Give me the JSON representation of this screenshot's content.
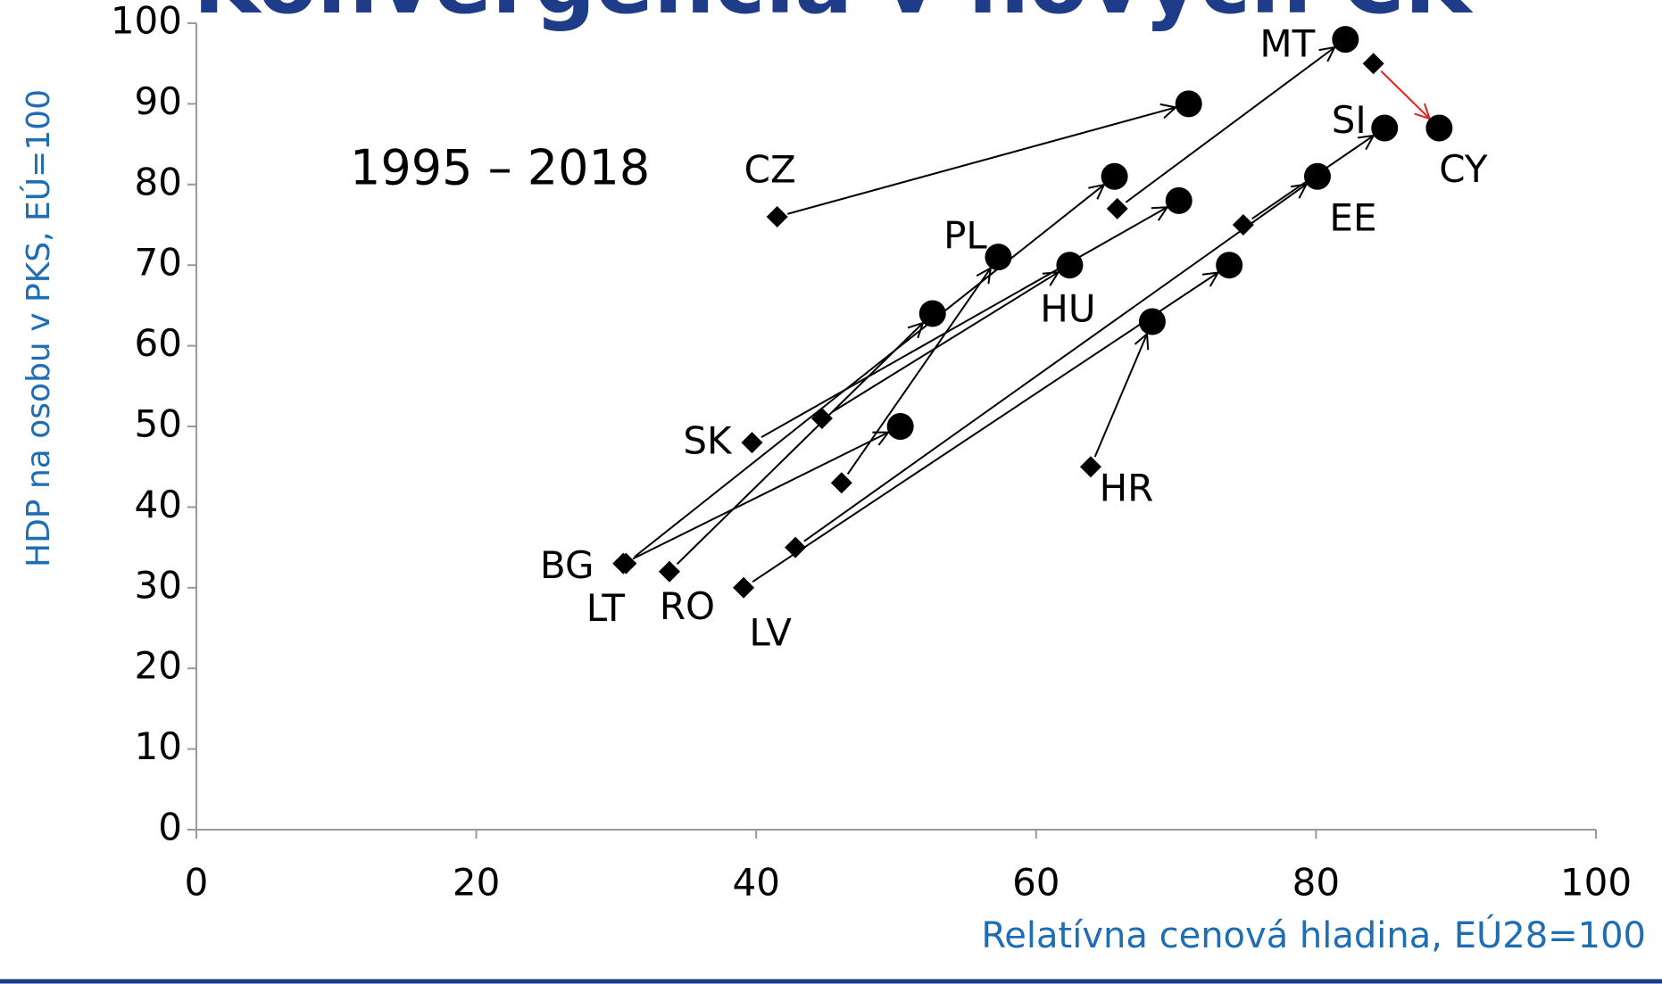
{
  "chart_data": {
    "type": "scatter",
    "title": "Konvergencia v nových ČK",
    "subtitle": "1995 – 2018",
    "xlabel": "Relatívna cenová hladina, EÚ28=100",
    "ylabel": "HDP na osobu v PKS, EÚ=100",
    "xlim": [
      0,
      100
    ],
    "ylim": [
      0,
      100
    ],
    "xticks": [
      0,
      20,
      40,
      60,
      80,
      100
    ],
    "yticks": [
      0,
      10,
      20,
      30,
      40,
      50,
      60,
      70,
      80,
      90,
      100
    ],
    "grid": false,
    "countries": [
      "CZ",
      "MT",
      "CY",
      "SI",
      "PL",
      "HU",
      "SK",
      "BG",
      "LT",
      "RO",
      "LV",
      "EE",
      "HR"
    ],
    "start": {
      "x": [
        41.5,
        65.8,
        84.1,
        74.8,
        46.1,
        44.7,
        39.7,
        30.5,
        30.7,
        33.8,
        39.1,
        42.8,
        63.9
      ],
      "y": [
        76,
        77,
        95,
        75,
        43,
        51,
        48,
        33,
        33,
        32,
        30,
        35,
        45
      ]
    },
    "end": {
      "x": [
        70.9,
        82.1,
        88.8,
        84.9,
        57.3,
        62.4,
        70.2,
        50.3,
        65.6,
        52.6,
        73.8,
        80.1,
        68.3
      ],
      "y": [
        90,
        98,
        87,
        87,
        71,
        70,
        78,
        50,
        81,
        64,
        70,
        81,
        63
      ]
    },
    "arrow_colors": [
      "#000000",
      "#000000",
      "#e8211d",
      "#000000",
      "#000000",
      "#000000",
      "#000000",
      "#000000",
      "#000000",
      "#000000",
      "#000000",
      "#000000",
      "#000000"
    ],
    "marker_color": "#000000",
    "title_color": "#1f3c88",
    "axis_label_color": "#1f6db3"
  }
}
